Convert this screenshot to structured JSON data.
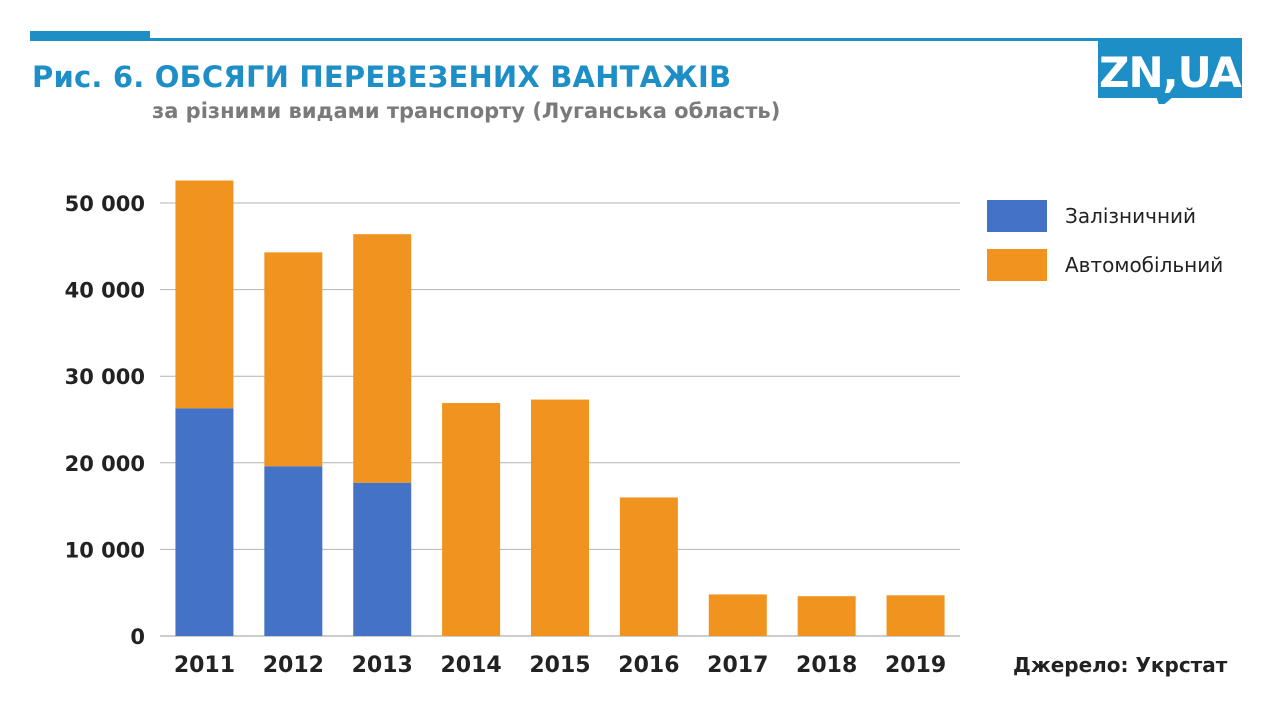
{
  "header": {
    "title": "Рис. 6. ОБСЯГИ ПЕРЕВЕЗЕНИХ ВАНТАЖІВ",
    "subtitle": "за різними видами транспорту (Луганська область)",
    "logo_text": "ZN,UA"
  },
  "source": "Джерело: Укрстат",
  "colors": {
    "accent": "#1e8fc6",
    "rail": "#4472c4",
    "road": "#f0931f",
    "grid": "#b3b3b3"
  },
  "chart_data": {
    "type": "bar",
    "stacked": true,
    "categories": [
      "2011",
      "2012",
      "2013",
      "2014",
      "2015",
      "2016",
      "2017",
      "2018",
      "2019"
    ],
    "series": [
      {
        "name": "Залізничний",
        "color": "#4472c4",
        "values": [
          26300,
          19600,
          17700,
          0,
          0,
          0,
          0,
          0,
          0
        ]
      },
      {
        "name": "Автомобільний",
        "color": "#f0931f",
        "values": [
          26300,
          24700,
          28700,
          26900,
          27300,
          16000,
          4800,
          4600,
          4700
        ]
      }
    ],
    "ylim": [
      0,
      50000
    ],
    "yticks": [
      0,
      10000,
      20000,
      30000,
      40000,
      50000
    ],
    "ytick_labels": [
      "0",
      "10 000",
      "20 000",
      "30 000",
      "40 000",
      "50 000"
    ],
    "grid": true,
    "legend": "right",
    "title": "Рис. 6. ОБСЯГИ ПЕРЕВЕЗЕНИХ ВАНТАЖІВ",
    "subtitle": "за різними видами транспорту (Луганська область)",
    "xlabel": "",
    "ylabel": ""
  }
}
